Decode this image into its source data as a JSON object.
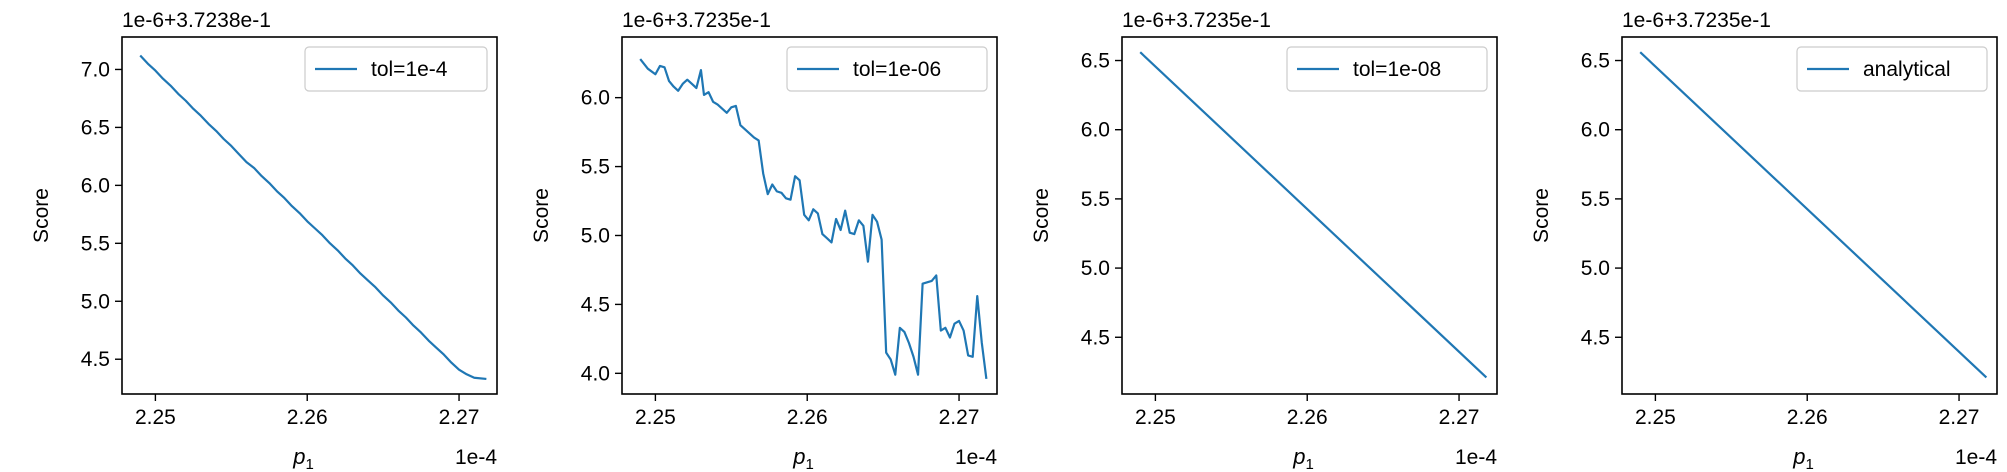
{
  "chart_data": [
    {
      "type": "line",
      "offset_label": "1e-6+3.7238e-1",
      "x_scale_label": "1e-4",
      "xlabel_main": "p",
      "xlabel_sub": "1",
      "ylabel": "Score",
      "xlim": [
        2.2478,
        2.2725
      ],
      "ylim": [
        4.2,
        7.28
      ],
      "xticks": [
        2.25,
        2.26,
        2.27
      ],
      "xtick_labels": [
        "2.25",
        "2.26",
        "2.27"
      ],
      "yticks": [
        4.5,
        5.0,
        5.5,
        6.0,
        6.5,
        7.0
      ],
      "ytick_labels": [
        "4.5",
        "5.0",
        "5.5",
        "6.0",
        "6.5",
        "7.0"
      ],
      "series": [
        {
          "name": "tol=1e-4",
          "color": "#1f77b4",
          "x": [
            2.249,
            2.2495,
            2.25,
            2.2505,
            2.251,
            2.2515,
            2.252,
            2.2525,
            2.253,
            2.2535,
            2.254,
            2.2545,
            2.255,
            2.2555,
            2.256,
            2.2565,
            2.257,
            2.2575,
            2.258,
            2.2585,
            2.259,
            2.2595,
            2.26,
            2.2605,
            2.261,
            2.2615,
            2.262,
            2.2625,
            2.263,
            2.2635,
            2.264,
            2.2645,
            2.265,
            2.2655,
            2.266,
            2.2665,
            2.267,
            2.2675,
            2.268,
            2.2685,
            2.269,
            2.2695,
            2.27,
            2.2705,
            2.271,
            2.2718
          ],
          "y": [
            7.12,
            7.05,
            6.99,
            6.92,
            6.86,
            6.79,
            6.73,
            6.66,
            6.6,
            6.53,
            6.47,
            6.4,
            6.34,
            6.27,
            6.2,
            6.15,
            6.08,
            6.02,
            5.95,
            5.89,
            5.82,
            5.76,
            5.69,
            5.63,
            5.57,
            5.5,
            5.44,
            5.37,
            5.31,
            5.24,
            5.18,
            5.12,
            5.05,
            4.99,
            4.92,
            4.86,
            4.79,
            4.73,
            4.66,
            4.6,
            4.54,
            4.47,
            4.41,
            4.37,
            4.34,
            4.33
          ]
        }
      ],
      "legend_position": "upper right"
    },
    {
      "type": "line",
      "offset_label": "1e-6+3.7235e-1",
      "x_scale_label": "1e-4",
      "xlabel_main": "p",
      "xlabel_sub": "1",
      "ylabel": "Score",
      "xlim": [
        2.2478,
        2.2725
      ],
      "ylim": [
        3.85,
        6.44
      ],
      "xticks": [
        2.25,
        2.26,
        2.27
      ],
      "xtick_labels": [
        "2.25",
        "2.26",
        "2.27"
      ],
      "yticks": [
        4.0,
        4.5,
        5.0,
        5.5,
        6.0
      ],
      "ytick_labels": [
        "4.0",
        "4.5",
        "5.0",
        "5.5",
        "6.0"
      ],
      "series": [
        {
          "name": "tol=1e-06",
          "color": "#1f77b4",
          "x": [
            2.249,
            2.2495,
            2.25,
            2.2503,
            2.2506,
            2.2509,
            2.2512,
            2.2515,
            2.2518,
            2.2521,
            2.2524,
            2.2527,
            2.253,
            2.2532,
            2.2535,
            2.2538,
            2.2541,
            2.2544,
            2.2547,
            2.255,
            2.2553,
            2.2556,
            2.2559,
            2.2562,
            2.2565,
            2.2568,
            2.2571,
            2.2574,
            2.2577,
            2.258,
            2.2583,
            2.2586,
            2.2589,
            2.2592,
            2.2595,
            2.2598,
            2.2601,
            2.2604,
            2.2607,
            2.261,
            2.2613,
            2.2616,
            2.2619,
            2.2622,
            2.2625,
            2.2628,
            2.2631,
            2.2634,
            2.2637,
            2.264,
            2.2643,
            2.2646,
            2.2649,
            2.2652,
            2.2655,
            2.2658,
            2.2661,
            2.2664,
            2.2667,
            2.267,
            2.2673,
            2.2676,
            2.2679,
            2.2682,
            2.2685,
            2.2688,
            2.2691,
            2.2694,
            2.2697,
            2.27,
            2.2703,
            2.2706,
            2.2709,
            2.2712,
            2.2715,
            2.2718
          ],
          "y": [
            6.28,
            6.21,
            6.17,
            6.23,
            6.22,
            6.12,
            6.08,
            6.05,
            6.1,
            6.13,
            6.1,
            6.07,
            6.2,
            6.02,
            6.04,
            5.97,
            5.95,
            5.92,
            5.89,
            5.93,
            5.94,
            5.8,
            5.77,
            5.74,
            5.71,
            5.69,
            5.45,
            5.3,
            5.37,
            5.32,
            5.31,
            5.27,
            5.26,
            5.43,
            5.4,
            5.15,
            5.11,
            5.19,
            5.16,
            5.01,
            4.98,
            4.95,
            5.12,
            5.04,
            5.18,
            5.02,
            5.01,
            5.11,
            5.07,
            4.81,
            5.15,
            5.1,
            4.97,
            4.15,
            4.1,
            3.99,
            4.33,
            4.3,
            4.22,
            4.12,
            3.99,
            4.65,
            4.66,
            4.67,
            4.71,
            4.31,
            4.33,
            4.26,
            4.36,
            4.38,
            4.31,
            4.13,
            4.12,
            4.56,
            4.22,
            3.96
          ],
          "x_dummy": null
        }
      ],
      "legend_position": "upper right"
    },
    {
      "type": "line",
      "offset_label": "1e-6+3.7235e-1",
      "x_scale_label": "1e-4",
      "xlabel_main": "p",
      "xlabel_sub": "1",
      "ylabel": "Score",
      "xlim": [
        2.2478,
        2.2725
      ],
      "ylim": [
        4.09,
        6.67
      ],
      "xticks": [
        2.25,
        2.26,
        2.27
      ],
      "xtick_labels": [
        "2.25",
        "2.26",
        "2.27"
      ],
      "yticks": [
        4.5,
        5.0,
        5.5,
        6.0,
        6.5
      ],
      "ytick_labels": [
        "4.5",
        "5.0",
        "5.5",
        "6.0",
        "6.5"
      ],
      "series": [
        {
          "name": "tol=1e-08",
          "color": "#1f77b4",
          "x": [
            2.249,
            2.2718
          ],
          "y": [
            6.56,
            4.21
          ]
        }
      ],
      "legend_position": "upper right"
    },
    {
      "type": "line",
      "offset_label": "1e-6+3.7235e-1",
      "x_scale_label": "1e-4",
      "xlabel_main": "p",
      "xlabel_sub": "1",
      "ylabel": "Score",
      "xlim": [
        2.2478,
        2.2725
      ],
      "ylim": [
        4.09,
        6.67
      ],
      "xticks": [
        2.25,
        2.26,
        2.27
      ],
      "xtick_labels": [
        "2.25",
        "2.26",
        "2.27"
      ],
      "yticks": [
        4.5,
        5.0,
        5.5,
        6.0,
        6.5
      ],
      "ytick_labels": [
        "4.5",
        "5.0",
        "5.5",
        "6.0",
        "6.5"
      ],
      "series": [
        {
          "name": "analytical",
          "color": "#1f77b4",
          "x": [
            2.249,
            2.2718
          ],
          "y": [
            6.56,
            4.21
          ]
        }
      ],
      "legend_position": "upper right"
    }
  ]
}
